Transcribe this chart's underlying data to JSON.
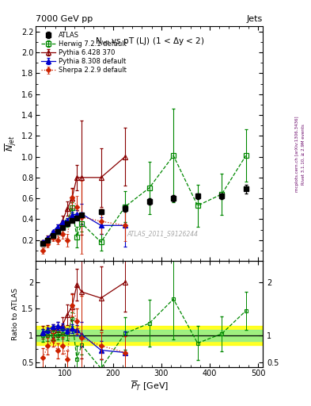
{
  "title_left": "7000 GeV pp",
  "title_right": "Jets",
  "plot_title": "N$_{jet}$ vs pT (LJ) (1 < $\\Delta$y < 2)",
  "xlabel": "$\\overline{P}_T$ [GeV]",
  "ylabel_main": "$\\overline{N}_{jet}$",
  "ylabel_ratio": "Ratio to ATLAS",
  "watermark": "ATLAS_2011_S9126244",
  "right_label1": "Rivet 3.1.10, ≥ 2.9M events",
  "right_label2": "mcplots.cern.ch [arXiv:1306.3436]",
  "atlas_x": [
    55,
    65,
    75,
    85,
    95,
    105,
    115,
    125,
    135,
    175,
    225,
    275,
    325,
    375,
    425,
    475
  ],
  "atlas_y": [
    0.17,
    0.2,
    0.24,
    0.28,
    0.32,
    0.36,
    0.39,
    0.41,
    0.44,
    0.47,
    0.5,
    0.57,
    0.6,
    0.62,
    0.62,
    0.69
  ],
  "atlas_yerr": [
    0.01,
    0.01,
    0.01,
    0.01,
    0.01,
    0.01,
    0.01,
    0.01,
    0.01,
    0.02,
    0.03,
    0.03,
    0.03,
    0.03,
    0.03,
    0.04
  ],
  "herwig_x": [
    55,
    65,
    75,
    85,
    95,
    105,
    115,
    125,
    135,
    175,
    225,
    275,
    325,
    375,
    425,
    475
  ],
  "herwig_y": [
    0.17,
    0.2,
    0.24,
    0.28,
    0.33,
    0.37,
    0.51,
    0.23,
    0.36,
    0.18,
    0.52,
    0.7,
    1.01,
    0.53,
    0.64,
    1.01
  ],
  "herwig_yerr": [
    0.02,
    0.02,
    0.02,
    0.02,
    0.03,
    0.04,
    0.05,
    0.1,
    0.08,
    0.08,
    0.15,
    0.25,
    0.45,
    0.2,
    0.2,
    0.25
  ],
  "pythia6_x": [
    55,
    65,
    75,
    85,
    95,
    105,
    115,
    125,
    135,
    175,
    225
  ],
  "pythia6_y": [
    0.18,
    0.22,
    0.26,
    0.31,
    0.38,
    0.5,
    0.6,
    0.8,
    0.8,
    0.8,
    1.0
  ],
  "pythia6_yerr": [
    0.02,
    0.02,
    0.03,
    0.04,
    0.05,
    0.07,
    0.1,
    0.12,
    0.55,
    0.28,
    0.28
  ],
  "pythia8_x": [
    55,
    65,
    75,
    85,
    95,
    105,
    115,
    125,
    135,
    175,
    225
  ],
  "pythia8_y": [
    0.18,
    0.22,
    0.28,
    0.33,
    0.37,
    0.39,
    0.44,
    0.45,
    0.45,
    0.34,
    0.34
  ],
  "pythia8_yerr": [
    0.01,
    0.01,
    0.01,
    0.02,
    0.02,
    0.02,
    0.03,
    0.04,
    0.1,
    0.08,
    0.2
  ],
  "sherpa_x": [
    55,
    65,
    75,
    85,
    95,
    105,
    115,
    125,
    135,
    175,
    225
  ],
  "sherpa_y": [
    0.1,
    0.16,
    0.22,
    0.2,
    0.26,
    0.2,
    0.61,
    0.52,
    0.42,
    0.38,
    0.34
  ],
  "sherpa_yerr": [
    0.03,
    0.03,
    0.03,
    0.04,
    0.05,
    0.06,
    0.08,
    0.1,
    0.35,
    0.12,
    0.15
  ],
  "xlim": [
    40,
    510
  ],
  "ylim_main": [
    0.0,
    2.25
  ],
  "ylim_ratio": [
    0.4,
    2.4
  ],
  "yticks_main": [
    0.2,
    0.4,
    0.6,
    0.8,
    1.0,
    1.2,
    1.4,
    1.6,
    1.8,
    2.0,
    2.2
  ],
  "yticks_ratio": [
    0.5,
    1.0,
    1.5,
    2.0
  ],
  "color_atlas": "#000000",
  "color_herwig": "#008800",
  "color_pythia6": "#880000",
  "color_pythia8": "#0000cc",
  "color_sherpa": "#cc2200",
  "band_yellow": [
    0.82,
    1.18
  ],
  "band_green": [
    0.9,
    1.1
  ]
}
